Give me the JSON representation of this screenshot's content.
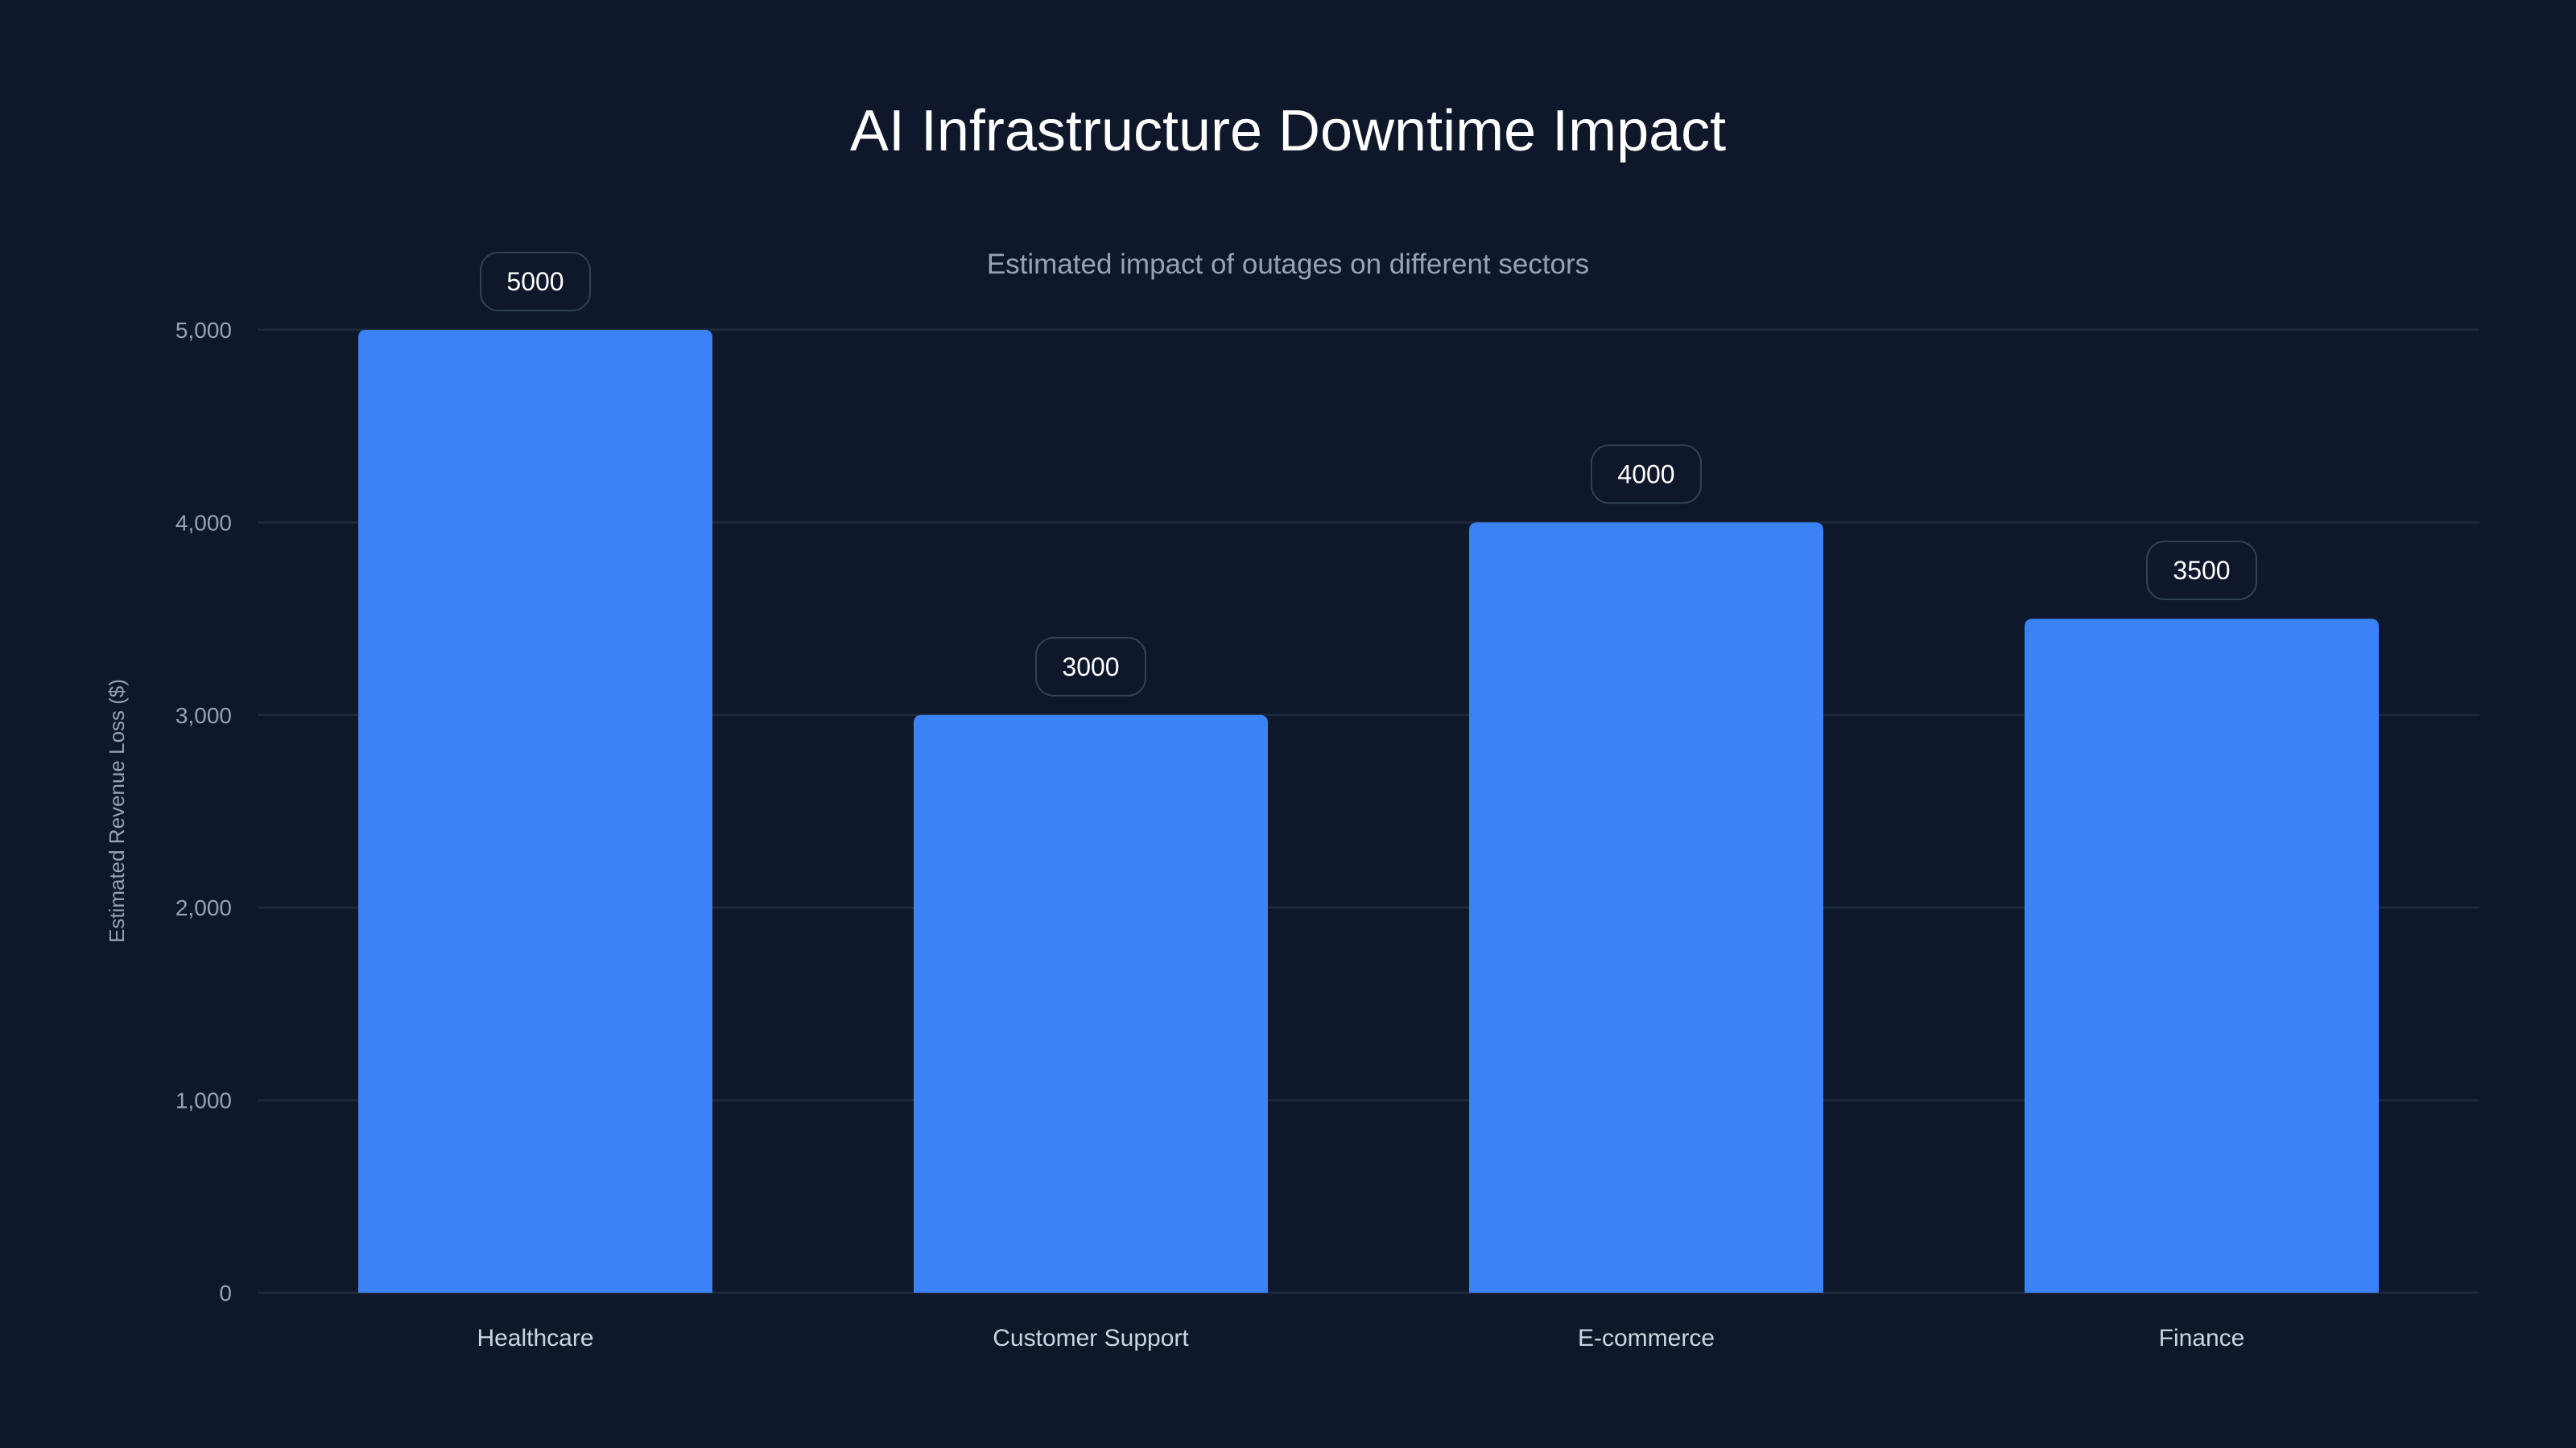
{
  "chart_data": {
    "type": "bar",
    "title": "AI Infrastructure Downtime Impact",
    "subtitle": "Estimated impact of outages on different sectors",
    "xlabel": "",
    "ylabel": "Estimated Revenue Loss ($)",
    "categories": [
      "Healthcare",
      "Customer Support",
      "E-commerce",
      "Finance"
    ],
    "values": [
      5000,
      3000,
      4000,
      3500
    ],
    "data_labels": [
      "5000",
      "3000",
      "4000",
      "3500"
    ],
    "ylim": [
      0,
      5000
    ],
    "yticks": [
      0,
      1000,
      2000,
      3000,
      4000,
      5000
    ],
    "ytick_labels": [
      "0",
      "1,000",
      "2,000",
      "3,000",
      "4,000",
      "5,000"
    ],
    "grid": true,
    "colors": {
      "background": "#0f172a",
      "bar": "#3b82f6",
      "grid": "#1e293b",
      "label_border": "#334155"
    }
  }
}
